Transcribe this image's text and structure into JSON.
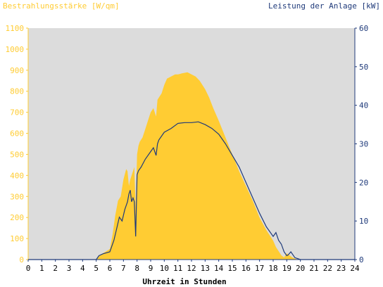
{
  "chart_data": {
    "type": "area",
    "left_axis_title": "Bestrahlungsstärke [W/qm]",
    "right_axis_title": "Leistung der Anlage [kW]",
    "xlabel": "Uhrzeit in Stunden",
    "xlim": [
      0,
      24
    ],
    "x_ticks": [
      "0",
      "1",
      "2",
      "3",
      "4",
      "5",
      "6",
      "7",
      "8",
      "9",
      "10",
      "11",
      "12",
      "13",
      "14",
      "15",
      "16",
      "17",
      "18",
      "19",
      "20",
      "21",
      "22",
      "23",
      "24"
    ],
    "ylim_left": [
      0,
      1100
    ],
    "y_ticks_left": [
      "0",
      "100",
      "200",
      "300",
      "400",
      "500",
      "600",
      "700",
      "800",
      "900",
      "1000",
      "1100"
    ],
    "ylim_right": [
      0,
      60
    ],
    "y_ticks_right": [
      "0",
      "10",
      "20",
      "30",
      "40",
      "50",
      "60"
    ],
    "grid": false,
    "colors": {
      "irradiance": "#ffcc33",
      "power": "#1f3a7a",
      "plot_bg": "#dcdcdc",
      "left_axis": "#ffcc33",
      "right_axis": "#1f3a7a"
    },
    "series": [
      {
        "axis": "left",
        "style": "area",
        "x": [
          0,
          5,
          5.1,
          5.5,
          6,
          6.2,
          6.4,
          6.6,
          6.8,
          7,
          7.2,
          7.3,
          7.4,
          7.5,
          7.6,
          7.8,
          7.9,
          8,
          8.1,
          8.2,
          8.4,
          8.6,
          8.8,
          9,
          9.2,
          9.4,
          9.5,
          9.6,
          9.8,
          10,
          10.2,
          10.5,
          10.8,
          11,
          11.3,
          11.7,
          12,
          12.3,
          12.6,
          13,
          13.3,
          13.6,
          14,
          14.5,
          15,
          15.5,
          16,
          16.5,
          17,
          17.5,
          18,
          18.2,
          18.4,
          18.6,
          18.8,
          19,
          19.2,
          19.4,
          19.6,
          19.8,
          20,
          20.2,
          24
        ],
        "values": [
          0,
          0,
          10,
          30,
          50,
          120,
          210,
          280,
          300,
          380,
          430,
          420,
          350,
          380,
          400,
          440,
          250,
          500,
          540,
          560,
          580,
          620,
          660,
          700,
          720,
          680,
          760,
          770,
          790,
          830,
          860,
          870,
          880,
          880,
          885,
          890,
          880,
          870,
          850,
          810,
          770,
          720,
          660,
          580,
          500,
          420,
          350,
          280,
          200,
          140,
          90,
          60,
          40,
          20,
          10,
          30,
          20,
          10,
          5,
          0,
          0,
          0,
          0
        ],
        "name": ""
      },
      {
        "axis": "right",
        "style": "line",
        "x": [
          0,
          5,
          5.2,
          5.5,
          6,
          6.3,
          6.5,
          6.7,
          6.9,
          7.1,
          7.3,
          7.4,
          7.5,
          7.6,
          7.7,
          7.8,
          7.9,
          8,
          8.1,
          8.3,
          8.6,
          9,
          9.2,
          9.4,
          9.5,
          9.6,
          10,
          10.5,
          11,
          11.5,
          12,
          12.5,
          13,
          13.5,
          14,
          14.5,
          15,
          15.5,
          16,
          16.5,
          17,
          17.5,
          18,
          18.2,
          18.4,
          18.6,
          18.8,
          19,
          19.1,
          19.3,
          19.6,
          20,
          24
        ],
        "values": [
          0,
          0,
          1,
          1.5,
          2,
          5,
          8,
          11,
          10,
          13,
          15,
          17,
          18,
          15,
          16,
          15,
          6,
          22,
          23,
          24,
          26,
          28,
          29,
          27,
          30,
          31,
          33,
          34,
          35.3,
          35.5,
          35.5,
          35.7,
          35,
          34,
          32.5,
          30,
          27,
          24,
          20,
          16,
          12,
          8.5,
          6,
          7,
          5,
          4,
          2,
          1,
          1.2,
          2,
          0.5,
          0,
          0
        ],
        "name": ""
      }
    ]
  }
}
